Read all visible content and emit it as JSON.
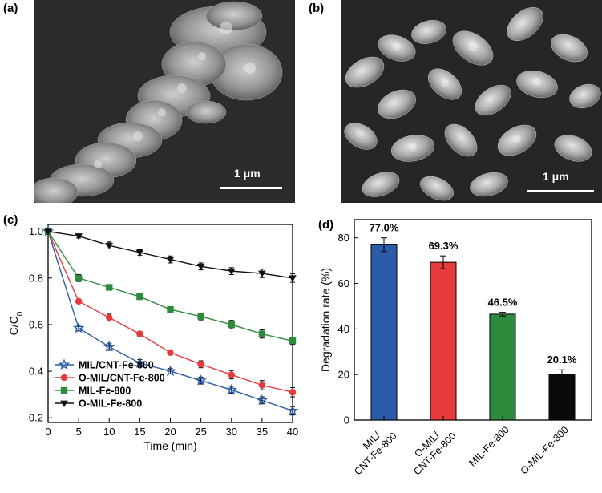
{
  "panels": {
    "a": {
      "label": "(a)",
      "scale_text": "1 μm"
    },
    "b": {
      "label": "(b)",
      "scale_text": "1 μm"
    },
    "c": {
      "label": "(c)"
    },
    "d": {
      "label": "(d)"
    }
  },
  "chart_data": [
    {
      "type": "line",
      "panel": "c",
      "xlabel": "Time (min)",
      "ylabel": "C/C0",
      "xlim": [
        0,
        40
      ],
      "ylim": [
        0.18,
        1.03
      ],
      "xticks": [
        0,
        5,
        10,
        15,
        20,
        25,
        30,
        35,
        40
      ],
      "xtick_labels": [
        "0",
        "5",
        "10",
        "15",
        "20",
        "25",
        "30",
        "35",
        "40"
      ],
      "yticks": [
        0.2,
        0.4,
        0.6,
        0.8,
        1.0
      ],
      "ytick_labels": [
        "0.2",
        "0.4",
        "0.6",
        "0.8",
        "1.0"
      ],
      "grid": false,
      "legend_position": "bottom-left",
      "x": [
        0,
        5,
        10,
        15,
        20,
        25,
        30,
        35,
        40
      ],
      "series": [
        {
          "name": "MIL/CNT-Fe-800",
          "color": "#2a5caa",
          "marker": "star",
          "values": [
            1.0,
            0.585,
            0.505,
            0.435,
            0.4,
            0.36,
            0.32,
            0.275,
            0.23
          ],
          "errors": [
            0,
            0.012,
            0.015,
            0.015,
            0.012,
            0.015,
            0.015,
            0.015,
            0.018
          ]
        },
        {
          "name": "O-MIL/CNT-Fe-800",
          "color": "#e83a3a",
          "marker": "circle",
          "values": [
            1.0,
            0.7,
            0.63,
            0.56,
            0.48,
            0.43,
            0.385,
            0.34,
            0.31
          ],
          "errors": [
            0,
            0.008,
            0.015,
            0.01,
            0.01,
            0.015,
            0.018,
            0.02,
            0.02
          ]
        },
        {
          "name": "MIL-Fe-800",
          "color": "#2e8b3e",
          "marker": "square",
          "values": [
            1.0,
            0.8,
            0.76,
            0.72,
            0.665,
            0.635,
            0.6,
            0.56,
            0.53
          ],
          "errors": [
            0,
            0.015,
            0.008,
            0.01,
            0.008,
            0.015,
            0.018,
            0.018,
            0.015
          ]
        },
        {
          "name": "O-MIL-Fe-800",
          "color": "#111111",
          "marker": "triangle-down",
          "values": [
            1.0,
            0.98,
            0.94,
            0.91,
            0.88,
            0.85,
            0.83,
            0.82,
            0.8
          ],
          "errors": [
            0,
            0.008,
            0.015,
            0.012,
            0.015,
            0.015,
            0.015,
            0.018,
            0.018
          ]
        }
      ]
    },
    {
      "type": "bar",
      "panel": "d",
      "ylabel": "Degradation rate (%)",
      "ylim": [
        0,
        88
      ],
      "yticks": [
        0,
        20,
        40,
        60,
        80
      ],
      "ytick_labels": [
        "0",
        "20",
        "40",
        "60",
        "80"
      ],
      "grid": false,
      "categories": [
        "MIL/\nCNT-Fe-800",
        "O-MIL/\nCNT-Fe-800",
        "MIL-Fe-800",
        "O-MIL-Fe-800"
      ],
      "values": [
        77.0,
        69.3,
        46.5,
        20.1
      ],
      "errors": [
        3.0,
        2.8,
        0.8,
        2.0
      ],
      "value_labels": [
        "77.0%",
        "69.3%",
        "46.5%",
        "20.1%"
      ],
      "colors": [
        "#2a5caa",
        "#e83a3a",
        "#2e8b3e",
        "#0a0a0a"
      ]
    }
  ]
}
